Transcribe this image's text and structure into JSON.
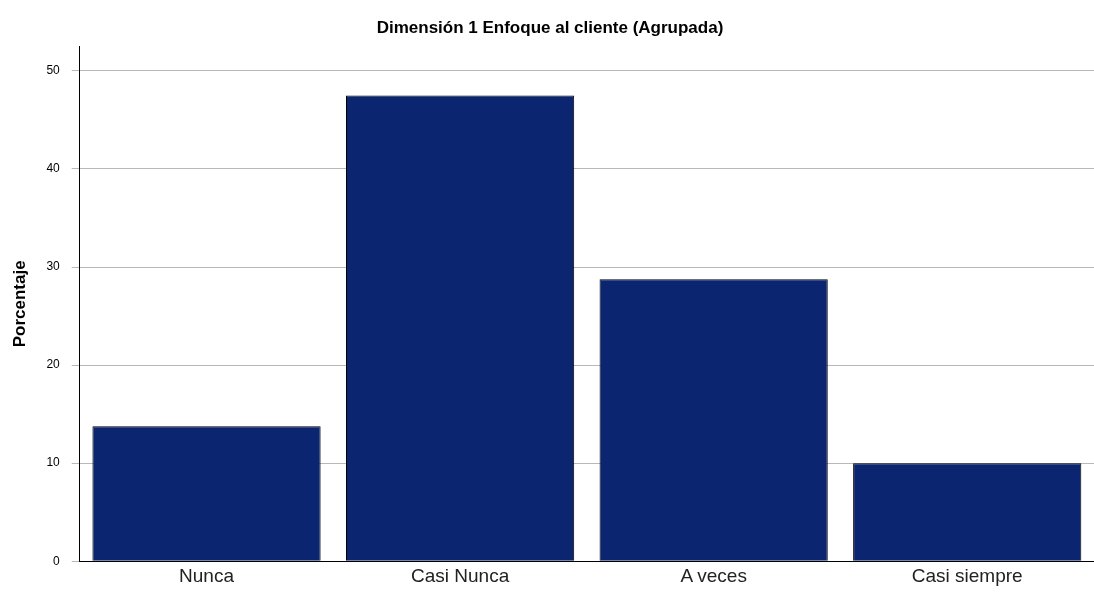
{
  "chart_data": {
    "type": "bar",
    "title": "Dimensión 1 Enfoque al cliente (Agrupada)",
    "ylabel": "Porcentaje",
    "categories": [
      "Nunca",
      "Casi Nunca",
      "A veces",
      "Casi siempre"
    ],
    "values": [
      13.75,
      47.5,
      28.75,
      10
    ],
    "color": "#0b2570",
    "ylim": [
      0,
      52.5
    ],
    "yticks": [
      0,
      10,
      20,
      30,
      40,
      50
    ],
    "grid": "y",
    "legend": false
  }
}
